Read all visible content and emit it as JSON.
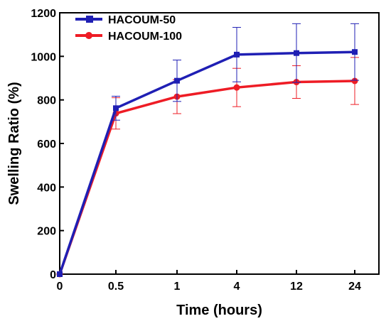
{
  "chart_data": {
    "type": "line",
    "title": "",
    "xlabel": "Time (hours)",
    "ylabel": "Swelling Ratio (%)",
    "categories": [
      "0",
      "0.5",
      "1",
      "4",
      "12",
      "24"
    ],
    "yticks": [
      "0",
      "200",
      "400",
      "600",
      "800",
      "1000",
      "1200"
    ],
    "ylim": [
      0,
      1200
    ],
    "grid": false,
    "legend_position": "top-left",
    "series": [
      {
        "name": "HACOUM-50",
        "color": "#1f1fb4",
        "marker": "square",
        "values": [
          0,
          762,
          888,
          1008,
          1015,
          1020
        ],
        "errors": [
          0,
          55,
          95,
          125,
          135,
          130
        ]
      },
      {
        "name": "HACOUM-100",
        "color": "#ee1c25",
        "marker": "circle",
        "values": [
          0,
          738,
          815,
          857,
          882,
          887
        ],
        "errors": [
          0,
          72,
          78,
          88,
          75,
          108
        ]
      }
    ]
  }
}
